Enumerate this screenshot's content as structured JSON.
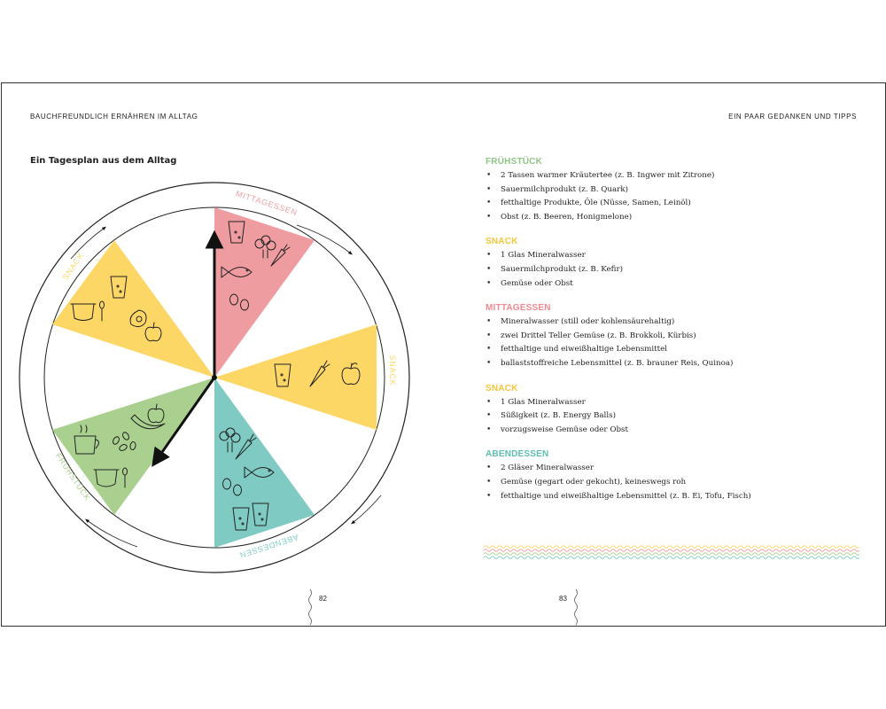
{
  "header": {
    "left": "BAUCHFREUNDLICH ERNÄHREN IM ALLTAG",
    "right": "EIN PAAR GEDANKEN UND TIPPS"
  },
  "left_page": {
    "title": "Ein Tagesplan aus dem Alltag",
    "page_number": "82",
    "wheel": {
      "segments": [
        {
          "label": "MITTAGESSEN",
          "color": "#ef9ca0"
        },
        {
          "label": "SNACK",
          "color": "#fcd766"
        },
        {
          "label": "ABENDESSEN",
          "color": "#7fcbc3"
        },
        {
          "label": "FRÜHSTÜCK",
          "color": "#a9d08e"
        },
        {
          "label": "SNACK",
          "color": "#fcd766"
        }
      ],
      "icons": {
        "mittag": [
          "glass-icon",
          "broccoli-icon",
          "carrot-icon",
          "fish-icon",
          "eggs-icon"
        ],
        "snack_right": [
          "glass-icon",
          "carrot-icon",
          "apple-icon"
        ],
        "abend": [
          "broccoli-icon",
          "carrot-icon",
          "fish-icon",
          "eggs-icon",
          "glass-icon",
          "glass-icon"
        ],
        "fruehstueck": [
          "cup-icon",
          "seeds-icon",
          "banana-icon",
          "apple-icon",
          "bowl-icon",
          "spoon-icon"
        ],
        "snack_left": [
          "glass-icon",
          "bowl-icon",
          "spoon-icon",
          "avocado-icon",
          "apple-icon"
        ]
      }
    }
  },
  "right_page": {
    "page_number": "83",
    "sections": [
      {
        "title": "FRÜHSTÜCK",
        "color": "#8fc685",
        "items": [
          "2 Tassen warmer Kräutertee (z. B. Ingwer mit Zitrone)",
          "Sauermilchprodukt (z. B. Quark)",
          "fetthaltige Produkte, Öle (Nüsse, Samen, Leinöl)",
          "Obst (z. B. Beeren, Honigmelone)"
        ]
      },
      {
        "title": "SNACK",
        "color": "#f4c63a",
        "items": [
          "1 Glas Mineralwasser",
          "Sauermilchprodukt (z. B. Kefir)",
          "Gemüse oder Obst"
        ]
      },
      {
        "title": "MITTAGESSEN",
        "color": "#ec8a90",
        "items": [
          "Mineralwasser (still oder kohlensäurehaltig)",
          "zwei Drittel Teller Gemüse (z. B. Brokkoli, Kürbis)",
          "fetthaltige und eiweißhaltige Lebensmittel",
          "ballaststoffreiche Lebensmittel (z. B. brauner Reis, Quinoa)"
        ]
      },
      {
        "title": "SNACK",
        "color": "#f4c63a",
        "items": [
          "1 Glas Mineralwasser",
          "Süßigkeit (z. B. Energy Balls)",
          "vorzugsweise Gemüse oder Obst"
        ]
      },
      {
        "title": "ABENDESSEN",
        "color": "#5fbdb2",
        "items": [
          "2 Gläser Mineralwasser",
          "Gemüse (gegart oder gekocht), keineswegs roh",
          "fetthaltige und eiweißhaltige Lebensmittel (z. B. Ei, Tofu, Fisch)"
        ]
      }
    ],
    "wave_colors": [
      "#fcd766",
      "#ef9ca0",
      "#a9d08e",
      "#7fcbc3"
    ]
  }
}
